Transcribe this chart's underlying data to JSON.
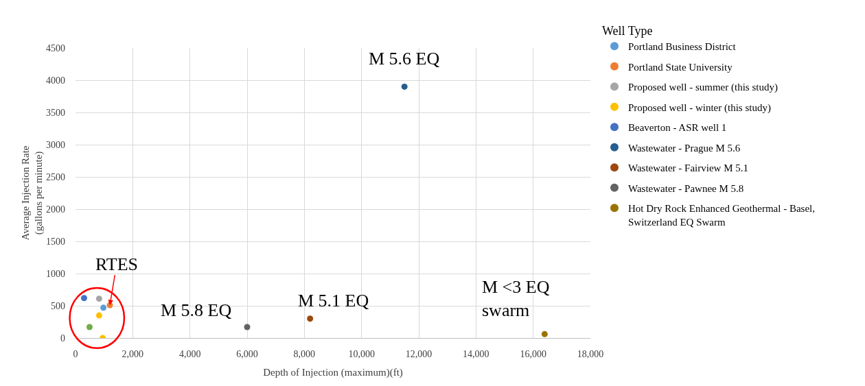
{
  "chart_data": {
    "type": "scatter",
    "xlabel": "Depth of Injection (maximum)(ft)",
    "ylabel": "Average Injection Rate\n(gallons per minute)",
    "legend_title": "Well Type",
    "series": [
      {
        "name": "Portland Business District",
        "color": "#5b9bd5",
        "x": [
          975
        ],
        "values": [
          470
        ]
      },
      {
        "name": "Portland State University",
        "color": "#ed7d31",
        "x": [
          1200
        ],
        "values": [
          510
        ]
      },
      {
        "name": "Proposed well - summer (this study)",
        "color": "#a5a5a5",
        "x": [
          825
        ],
        "values": [
          610
        ]
      },
      {
        "name": "Proposed well - winter (this study)",
        "color": "#ffc000",
        "x": [
          825,
          950
        ],
        "values": [
          350,
          0
        ]
      },
      {
        "name": "Beaverton - ASR well 1",
        "color": "#4472c4",
        "x": [
          300
        ],
        "values": [
          620
        ]
      },
      {
        "color": "#70ad47",
        "x": [
          490
        ],
        "values": [
          170
        ]
      },
      {
        "name": "Wastewater - Prague M 5.6",
        "color": "#255e91",
        "x": [
          11500
        ],
        "values": [
          3900
        ]
      },
      {
        "name": "Wastewater - Fairview M 5.1",
        "color": "#9e480e",
        "x": [
          8200
        ],
        "values": [
          300
        ]
      },
      {
        "name": "Wastewater - Pawnee M 5.8",
        "color": "#636363",
        "x": [
          6000
        ],
        "values": [
          170
        ]
      },
      {
        "name": "Hot Dry Rock Enhanced Geothermal - Basel,\nSwitzerland EQ Swarm",
        "color": "#997300",
        "x": [
          16400
        ],
        "values": [
          60
        ]
      }
    ],
    "xlim": [
      0,
      18000
    ],
    "xticks": [
      0,
      {
        "value": 2000,
        "label": "2,000"
      },
      {
        "value": 4000,
        "label": "4,000"
      },
      {
        "value": 6000,
        "label": "6,000"
      },
      {
        "value": 8000,
        "label": "8,000"
      },
      {
        "value": 10000,
        "label": "10,000"
      },
      {
        "value": 12000,
        "label": "12,000"
      },
      {
        "value": 14000,
        "label": "14,000"
      },
      {
        "value": 16000,
        "label": "16,000"
      },
      {
        "value": 18000,
        "label": "18,000"
      }
    ],
    "ylim": [
      0,
      4500
    ],
    "yticks": [
      0,
      500,
      1000,
      1500,
      2000,
      2500,
      3000,
      3500,
      4000,
      4500
    ],
    "annotations": [
      {
        "text": "M 5.6 EQ",
        "x": 11500,
        "y": 3900
      },
      {
        "text": "M 5.8 EQ",
        "x": 6000,
        "y": 170
      },
      {
        "text": "M 5.1 EQ",
        "x": 8200,
        "y": 300
      },
      {
        "text": "M <3 EQ\nswarm",
        "x": 16400,
        "y": 60
      },
      {
        "text": "RTES",
        "x": 1200,
        "y": 510
      }
    ],
    "grid": true,
    "legend": "right",
    "marker": "circle"
  }
}
